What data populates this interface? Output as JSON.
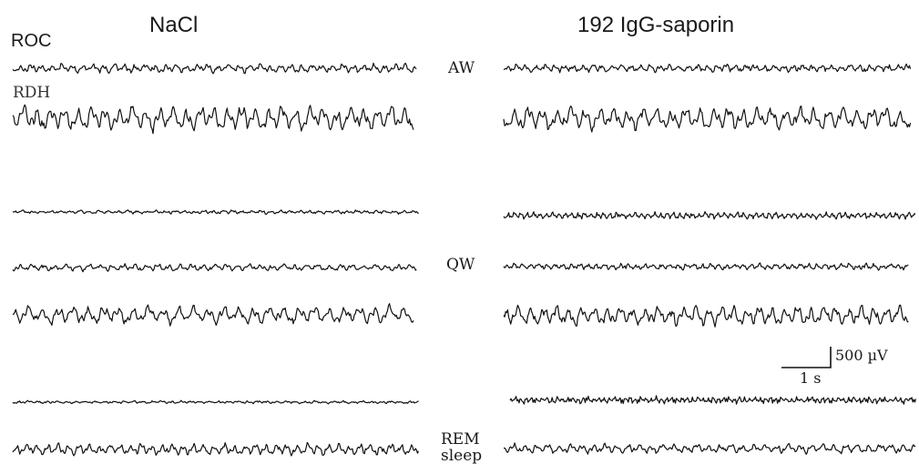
{
  "groups": {
    "left": "NaCl",
    "right": "192 IgG-saporin"
  },
  "channels": {
    "first": "ROC",
    "second": "RDH"
  },
  "states": [
    {
      "key": "aw",
      "label": "AW"
    },
    {
      "key": "qw",
      "label": "QW"
    },
    {
      "key": "rem",
      "label": "REM sleep"
    }
  ],
  "scale_bar": {
    "voltage": "500 µV",
    "time": "1 s"
  },
  "colors": {
    "trace": "#111111",
    "text": "#1a1a1a"
  }
}
